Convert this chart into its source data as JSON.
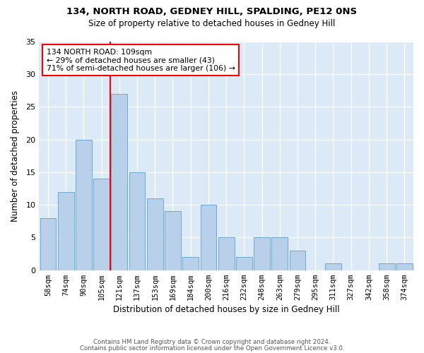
{
  "title1": "134, NORTH ROAD, GEDNEY HILL, SPALDING, PE12 0NS",
  "title2": "Size of property relative to detached houses in Gedney Hill",
  "xlabel": "Distribution of detached houses by size in Gedney Hill",
  "ylabel": "Number of detached properties",
  "categories": [
    "58sqm",
    "74sqm",
    "90sqm",
    "105sqm",
    "121sqm",
    "137sqm",
    "153sqm",
    "169sqm",
    "184sqm",
    "200sqm",
    "216sqm",
    "232sqm",
    "248sqm",
    "263sqm",
    "279sqm",
    "295sqm",
    "311sqm",
    "327sqm",
    "342sqm",
    "358sqm",
    "374sqm"
  ],
  "values": [
    8,
    12,
    20,
    14,
    27,
    15,
    11,
    9,
    2,
    10,
    5,
    2,
    5,
    5,
    3,
    0,
    1,
    0,
    0,
    1,
    1
  ],
  "bar_color": "#b8d0ea",
  "bar_edge_color": "#6aaad4",
  "vline_x": 3.5,
  "vline_color": "red",
  "annotation_text": "134 NORTH ROAD: 109sqm\n← 29% of detached houses are smaller (43)\n71% of semi-detached houses are larger (106) →",
  "annotation_box_color": "white",
  "annotation_box_edge_color": "red",
  "ylim": [
    0,
    35
  ],
  "yticks": [
    0,
    5,
    10,
    15,
    20,
    25,
    30,
    35
  ],
  "footer1": "Contains HM Land Registry data © Crown copyright and database right 2024.",
  "footer2": "Contains public sector information licensed under the Open Government Licence v3.0.",
  "plot_bg_color": "#dce9f7"
}
